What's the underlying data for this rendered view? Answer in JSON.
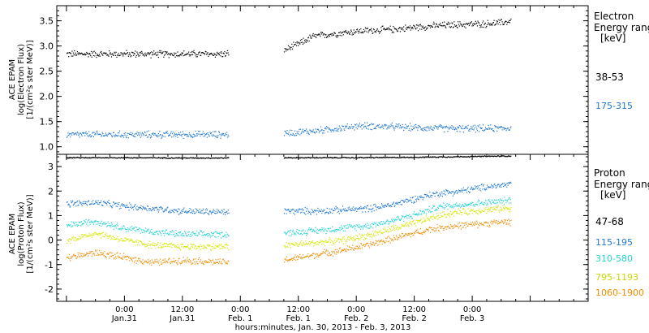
{
  "chart_data": [
    {
      "type": "scatter",
      "title": "",
      "ylabel": [
        "ACE EPAM",
        "log(Electron Flux)",
        "[1/(cm²s ster MeV)]"
      ],
      "ylim": [
        0.85,
        3.8
      ],
      "yticks": [
        1.0,
        1.5,
        2.0,
        2.5,
        3.0,
        3.5
      ],
      "ytick_labels": [
        "1.0",
        "1.5",
        "2.0",
        "2.5",
        "3.0",
        "3.5"
      ],
      "legend": {
        "title": [
          "Electron",
          "Energy ranges",
          "[keV]"
        ],
        "placement": "right",
        "entries": [
          {
            "label": "38-53",
            "color": "#000000"
          },
          {
            "label": "175-315",
            "color": "#1f77d0"
          }
        ]
      },
      "grid": false,
      "series": [
        {
          "name": "38-53",
          "color": "#000000",
          "x": [
            -12,
            0,
            12,
            21,
            33,
            36,
            39,
            45,
            48,
            51,
            54,
            57,
            60,
            63,
            66,
            69,
            72,
            75,
            78,
            80
          ],
          "y": [
            2.85,
            2.85,
            2.85,
            2.85,
            2.92,
            3.05,
            3.2,
            3.27,
            3.3,
            3.32,
            3.33,
            3.35,
            3.38,
            3.4,
            3.42,
            3.43,
            3.44,
            3.45,
            3.47,
            3.5
          ]
        },
        {
          "name": "175-315",
          "color": "#1f77d0",
          "x": [
            -12,
            0,
            12,
            21,
            33,
            39,
            45,
            48,
            51,
            57,
            63,
            69,
            75,
            80
          ],
          "y": [
            1.25,
            1.25,
            1.25,
            1.25,
            1.28,
            1.32,
            1.38,
            1.42,
            1.42,
            1.4,
            1.38,
            1.37,
            1.37,
            1.38
          ]
        }
      ]
    },
    {
      "type": "scatter",
      "title": "",
      "ylabel": [
        "ACE EPAM",
        "log(Proton Flux)",
        "[1/(cm²s ster MeV)]"
      ],
      "ylim": [
        -2.5,
        3.5
      ],
      "yticks": [
        -2,
        -1,
        0,
        1,
        2,
        3
      ],
      "ytick_labels": [
        "-2",
        "-1",
        "0",
        "1",
        "2",
        "3"
      ],
      "xlabel": "hours:minutes, Jan. 30, 2013 - Feb.  3, 2013",
      "xlim": [
        -14,
        96
      ],
      "xticks": [
        0,
        24,
        48,
        72,
        96
      ],
      "xtick_labels": [
        {
          "time": "0:00",
          "date": "Jan.31"
        },
        {
          "time": "12:00",
          "date": "Jan.31"
        },
        {
          "time": "0:00",
          "date": "Feb. 1"
        },
        {
          "time": "12:00",
          "date": "Feb. 1"
        },
        {
          "time": "0:00",
          "date": "Feb. 2"
        },
        {
          "time": "12:00",
          "date": "Feb. 2"
        },
        {
          "time": "0:00",
          "date": "Feb. 3"
        }
      ],
      "xtick_values": [
        0,
        12,
        24,
        36,
        48,
        60,
        72
      ],
      "legend": {
        "title": [
          "Proton",
          "Energy ranges",
          "[keV]"
        ],
        "placement": "right",
        "entries": [
          {
            "label": "47-68",
            "color": "#000000"
          },
          {
            "label": "115-195",
            "color": "#1f77d0"
          },
          {
            "label": "310-580",
            "color": "#22d3d3"
          },
          {
            "label": "795-1193",
            "color": "#d4e600"
          },
          {
            "label": "1060-1900",
            "color": "#f08c00"
          }
        ]
      },
      "grid": false,
      "series": [
        {
          "name": "47-68",
          "color": "#000000",
          "x": [
            -12,
            0,
            12,
            21,
            33,
            45,
            57,
            69,
            80
          ],
          "y": [
            3.38,
            3.38,
            3.37,
            3.37,
            3.38,
            3.38,
            3.39,
            3.42,
            3.45
          ]
        },
        {
          "name": "115-195",
          "color": "#1f77d0",
          "x": [
            -12,
            -6,
            0,
            6,
            12,
            21,
            33,
            39,
            45,
            50,
            54,
            57,
            60,
            63,
            66,
            69,
            72,
            75,
            78,
            80
          ],
          "y": [
            1.5,
            1.55,
            1.4,
            1.3,
            1.2,
            1.15,
            1.2,
            1.2,
            1.25,
            1.3,
            1.4,
            1.55,
            1.7,
            1.85,
            1.95,
            2.0,
            2.1,
            2.2,
            2.25,
            2.3
          ]
        },
        {
          "name": "310-580",
          "color": "#22d3d3",
          "x": [
            -12,
            -6,
            0,
            6,
            12,
            21,
            33,
            39,
            45,
            50,
            54,
            57,
            60,
            63,
            66,
            69,
            72,
            75,
            78,
            80
          ],
          "y": [
            0.6,
            0.8,
            0.5,
            0.35,
            0.25,
            0.25,
            0.3,
            0.4,
            0.5,
            0.6,
            0.75,
            0.9,
            1.05,
            1.25,
            1.4,
            1.45,
            1.5,
            1.55,
            1.6,
            1.65
          ]
        },
        {
          "name": "795-1193",
          "color": "#d4e600",
          "x": [
            -12,
            -6,
            0,
            6,
            12,
            21,
            33,
            39,
            45,
            50,
            54,
            57,
            60,
            63,
            66,
            69,
            72,
            75,
            78,
            80
          ],
          "y": [
            0.0,
            0.3,
            0.0,
            -0.2,
            -0.25,
            -0.25,
            -0.2,
            -0.1,
            0.0,
            0.2,
            0.4,
            0.55,
            0.7,
            0.9,
            1.05,
            1.15,
            1.2,
            1.25,
            1.3,
            1.35
          ]
        },
        {
          "name": "1060-1900",
          "color": "#f08c00",
          "x": [
            -12,
            -6,
            0,
            6,
            12,
            21,
            33,
            39,
            45,
            50,
            54,
            57,
            60,
            63,
            66,
            69,
            72,
            75,
            78,
            80
          ],
          "y": [
            -0.7,
            -0.5,
            -0.7,
            -0.9,
            -0.8,
            -0.9,
            -0.8,
            -0.6,
            -0.4,
            -0.2,
            0.0,
            0.15,
            0.3,
            0.45,
            0.55,
            0.6,
            0.65,
            0.7,
            0.75,
            0.75
          ]
        }
      ],
      "data_gap_hours": [
        21.5,
        33
      ]
    }
  ]
}
